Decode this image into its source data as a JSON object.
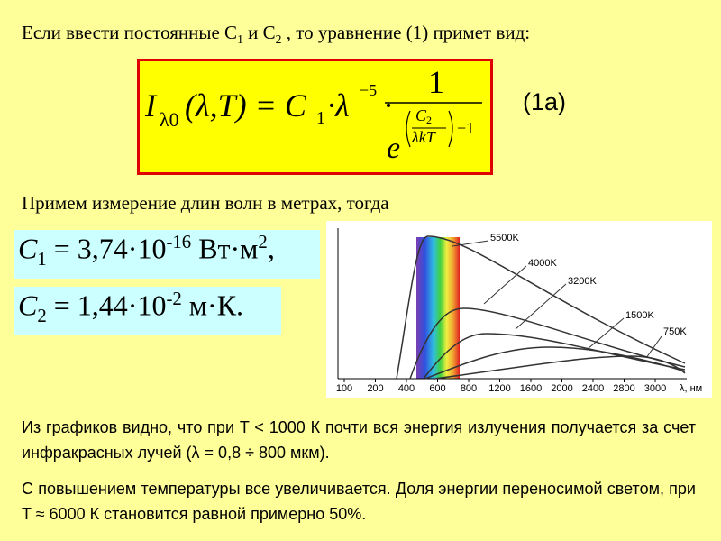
{
  "heading": [
    "Если ввести постоянные C",
    "1",
    " и C",
    "2",
    " , то уравнение (1) примет вид:"
  ],
  "formula": {
    "I": "I",
    "sub": "λ0",
    "args": "(λ,T) = C",
    "c1sub": "1",
    "dot_lambda": "·λ",
    "exp": "−5",
    "dot": "·",
    "num": "1",
    "e": "e",
    "c2": "C",
    "c2sub": "2",
    "den": "λkT",
    "minus1": "−1"
  },
  "label": "(1a)",
  "sentence": "Примем измерение длин волн в метрах, тогда",
  "c1": {
    "name": "C",
    "sub": "1",
    "text": " = 3,74·10",
    "exp": "-16",
    "unit": " Вт·м",
    "unit_exp": "2",
    "end": ","
  },
  "c2": {
    "name": "C",
    "sub": "2",
    "text": " = 1,44·10",
    "exp": "-2",
    "unit": " м·К."
  },
  "graph": {
    "xticks": [
      "100",
      "200",
      "400",
      "600",
      "800",
      "1200",
      "1600",
      "2000",
      "2400",
      "2800",
      "3000"
    ],
    "x_label": "λ, нм",
    "curves": [
      "5500K",
      "4000K",
      "3200K",
      "1500K",
      "750K"
    ]
  },
  "paragraphs": [
    "Из графиков видно, что при T < 1000 К почти вся энергия излучения получается за счет инфракрасных лучей (λ = 0,8 ÷ 800 мкм).",
    "С повышением температуры все увеличивается. Доля энергии переносимой светом, при T ≈ 6000 К становится равной примерно 50%."
  ]
}
